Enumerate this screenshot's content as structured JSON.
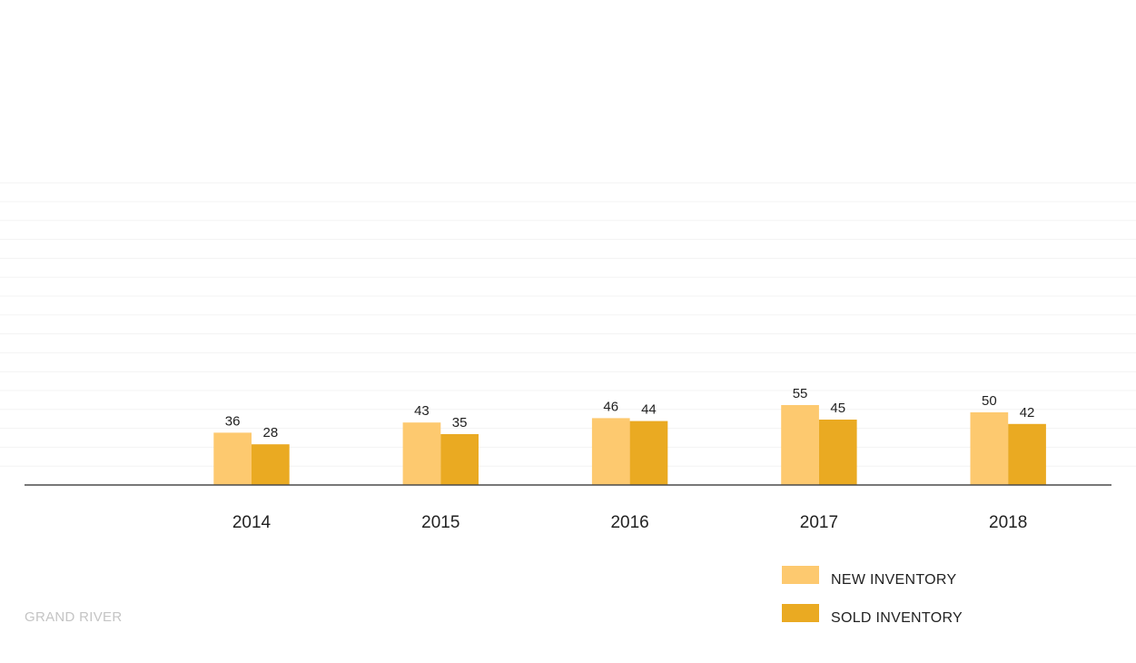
{
  "chart_data": {
    "type": "bar",
    "categories": [
      "2014",
      "2015",
      "2016",
      "2017",
      "2018"
    ],
    "series": [
      {
        "name": "NEW INVENTORY",
        "values": [
          36,
          43,
          46,
          55,
          50
        ],
        "color": "#FDC96F"
      },
      {
        "name": "SOLD INVENTORY",
        "values": [
          28,
          35,
          44,
          45,
          42
        ],
        "color": "#EAAA22"
      }
    ],
    "title": "",
    "xlabel": "",
    "ylabel": "",
    "ylim": [
      0,
      200
    ],
    "grid": true,
    "legend": "bottom-right",
    "data_labels": true
  },
  "footer": {
    "label": "GRAND RIVER"
  }
}
